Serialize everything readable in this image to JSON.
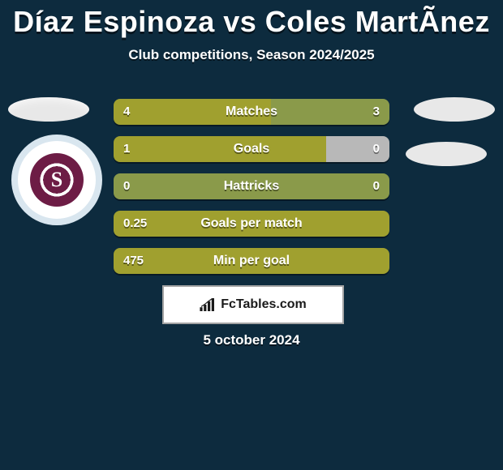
{
  "header": {
    "title": "Díaz Espinoza vs Coles MartÃ­nez",
    "subtitle": "Club competitions, Season 2024/2025"
  },
  "colors": {
    "bg": "#0d2b3e",
    "bar_left": "#a0a02f",
    "bar_right": "#9ba376",
    "bar_right_alt": "#7f8f4a",
    "text": "#ffffff"
  },
  "stats": [
    {
      "label": "Matches",
      "left_value": "4",
      "right_value": "3",
      "left_pct": 57,
      "left_color": "#a0a02f",
      "right_color": "#8a9a4a"
    },
    {
      "label": "Goals",
      "left_value": "1",
      "right_value": "0",
      "left_pct": 77,
      "left_color": "#a0a02f",
      "right_color": "#b8b8b8"
    },
    {
      "label": "Hattricks",
      "left_value": "0",
      "right_value": "0",
      "left_pct": 100,
      "left_color": "#8a9a4a",
      "right_color": "#8a9a4a"
    },
    {
      "label": "Goals per match",
      "left_value": "0.25",
      "right_value": "",
      "left_pct": 100,
      "left_color": "#a0a02f",
      "right_color": "#a0a02f"
    },
    {
      "label": "Min per goal",
      "left_value": "475",
      "right_value": "",
      "left_pct": 100,
      "left_color": "#a0a02f",
      "right_color": "#a0a02f"
    }
  ],
  "footer": {
    "brand": "FcTables.com",
    "date": "5 october 2024"
  }
}
